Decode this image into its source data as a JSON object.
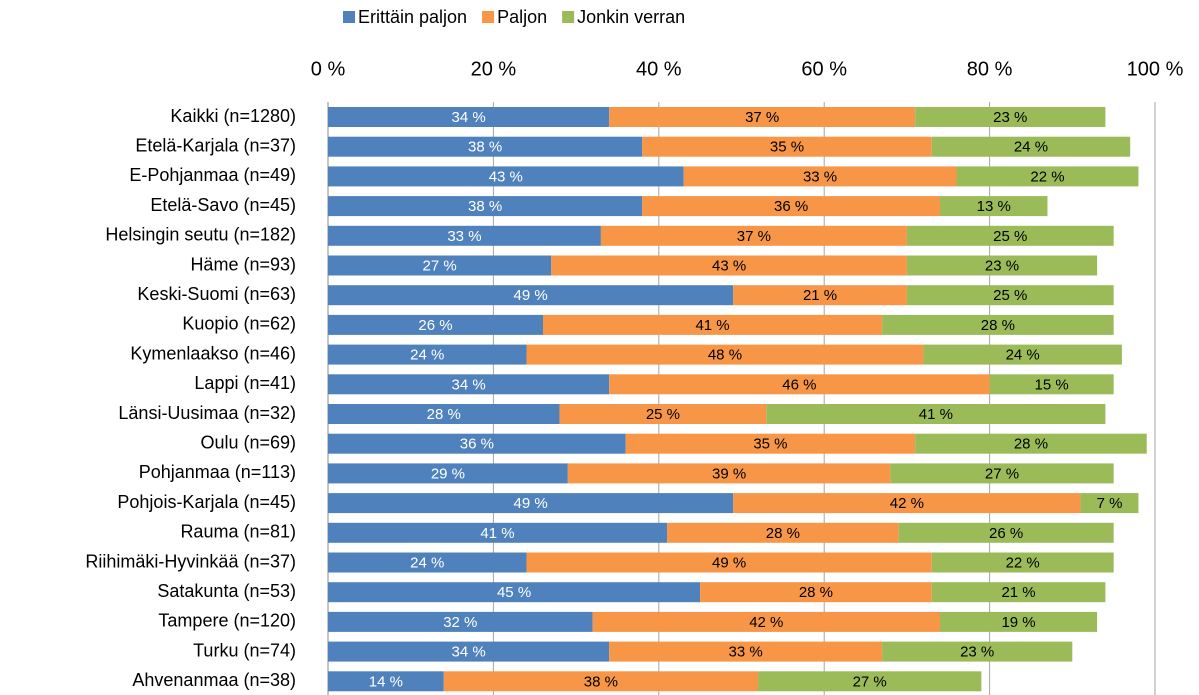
{
  "chart_data": {
    "type": "stacked-barh",
    "categories": [
      "Kaikki (n=1280)",
      "Etelä-Karjala (n=37)",
      "E-Pohjanmaa (n=49)",
      "Etelä-Savo (n=45)",
      "Helsingin seutu (n=182)",
      "Häme (n=93)",
      "Keski-Suomi (n=63)",
      "Kuopio (n=62)",
      "Kymenlaakso (n=46)",
      "Lappi (n=41)",
      "Länsi-Uusimaa (n=32)",
      "Oulu (n=69)",
      "Pohjanmaa (n=113)",
      "Pohjois-Karjala (n=45)",
      "Rauma (n=81)",
      "Riihimäki-Hyvinkää (n=37)",
      "Satakunta (n=53)",
      "Tampere (n=120)",
      "Turku (n=74)",
      "Ahvenanmaa (n=38)"
    ],
    "series": [
      {
        "name": "Erittäin paljon",
        "color": "#4f81bd",
        "values": [
          34,
          38,
          43,
          38,
          33,
          27,
          49,
          26,
          24,
          34,
          28,
          36,
          29,
          49,
          41,
          24,
          45,
          32,
          34,
          14
        ],
        "value_labels": [
          "34 %",
          "38 %",
          "43 %",
          "38 %",
          "33 %",
          "27 %",
          "49 %",
          "26 %",
          "24 %",
          "34 %",
          "28 %",
          "36 %",
          "29 %",
          "49 %",
          "41 %",
          "24 %",
          "45 %",
          "32 %",
          "34 %",
          "14 %"
        ]
      },
      {
        "name": "Paljon",
        "color": "#f79646",
        "values": [
          37,
          35,
          33,
          36,
          37,
          43,
          21,
          41,
          48,
          46,
          25,
          35,
          39,
          42,
          28,
          49,
          28,
          42,
          33,
          38
        ],
        "value_labels": [
          "37 %",
          "35 %",
          "33 %",
          "36 %",
          "37 %",
          "43 %",
          "21 %",
          "41 %",
          "48 %",
          "46 %",
          "25 %",
          "35 %",
          "39 %",
          "42 %",
          "28 %",
          "49 %",
          "28 %",
          "42 %",
          "33 %",
          "38 %"
        ]
      },
      {
        "name": "Jonkin verran",
        "color": "#9bbb59",
        "values": [
          23,
          24,
          22,
          13,
          25,
          23,
          25,
          28,
          24,
          15,
          41,
          28,
          27,
          7,
          26,
          22,
          21,
          19,
          23,
          27
        ],
        "value_labels": [
          "23 %",
          "24 %",
          "22 %",
          "13 %",
          "25 %",
          "23 %",
          "25 %",
          "28 %",
          "24 %",
          "15 %",
          "41 %",
          "28 %",
          "27 %",
          "7 %",
          "26 %",
          "22 %",
          "21 %",
          "19 %",
          "23 %",
          "27 %"
        ]
      }
    ],
    "xlim": [
      0,
      100
    ],
    "xticks": [
      {
        "value": 0,
        "label": "0 %"
      },
      {
        "value": 20,
        "label": "20 %"
      },
      {
        "value": 40,
        "label": "40 %"
      },
      {
        "value": 60,
        "label": "60 %"
      },
      {
        "value": 80,
        "label": "80 %"
      },
      {
        "value": 100,
        "label": "100 %"
      }
    ],
    "grid": true,
    "legend": "top"
  }
}
